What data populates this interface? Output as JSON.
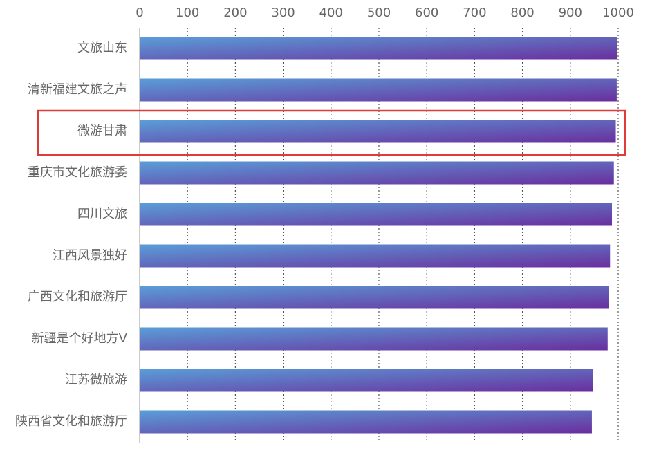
{
  "chart_data": {
    "type": "bar",
    "orientation": "horizontal",
    "categories": [
      "文旅山东",
      "清新福建文旅之声",
      "微游甘肃",
      "重庆市文化旅游委",
      "四川文旅",
      "江西风景独好",
      "广西文化和旅游厅",
      "新疆是个好地方V",
      "江苏微旅游",
      "陕西省文化和旅游厅"
    ],
    "values": [
      998,
      997,
      995,
      991,
      987,
      983,
      980,
      978,
      947,
      945
    ],
    "xlim": [
      0,
      1000
    ],
    "xticks": [
      0,
      100,
      200,
      300,
      400,
      500,
      600,
      700,
      800,
      900,
      1000
    ],
    "x_axis_position": "top",
    "grid": "vertical dotted",
    "highlighted_category": "微游甘肃",
    "colors": {
      "bar_gradient_start": "#5a9ed8",
      "bar_gradient_end": "#6a2e9e",
      "highlight_box": "#e03b3b",
      "grid": "#555555",
      "axis": "#bbbbbb",
      "text": "#666666"
    }
  }
}
